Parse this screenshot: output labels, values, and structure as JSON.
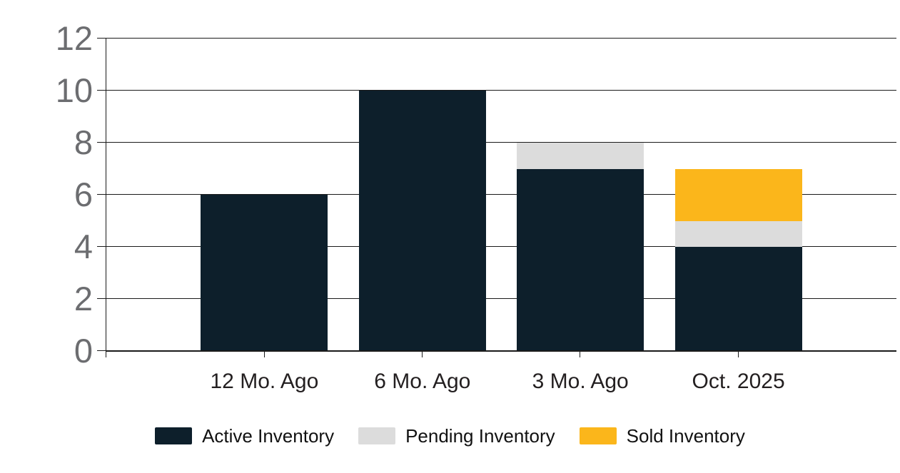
{
  "chart_data": {
    "type": "bar",
    "stacked": true,
    "title": "",
    "xlabel": "",
    "ylabel": "",
    "categories": [
      "12 Mo. Ago",
      "6 Mo. Ago",
      "3 Mo. Ago",
      "Oct. 2025"
    ],
    "series": [
      {
        "name": "Active Inventory",
        "color": "#0d1f2b",
        "values": [
          6,
          10,
          7,
          4
        ]
      },
      {
        "name": "Pending Inventory",
        "color": "#dcdcdc",
        "values": [
          0,
          0,
          1,
          1
        ]
      },
      {
        "name": "Sold Inventory",
        "color": "#fbb61b",
        "values": [
          0,
          0,
          0,
          2
        ]
      }
    ],
    "totals": [
      6,
      10,
      8,
      7
    ],
    "y_ticks": [
      0,
      2,
      4,
      6,
      8,
      10,
      12
    ],
    "ylim": [
      0,
      12
    ],
    "grid": true,
    "gridline_color": "#1a1a1a",
    "y_tick_label_color": "#6c6d70",
    "x_tick_label_color": "#231f20",
    "legend_position": "bottom",
    "legend_labels": [
      "Active Inventory",
      "Pending Inventory",
      "Sold Inventory"
    ],
    "background_color": "#ffffff"
  }
}
